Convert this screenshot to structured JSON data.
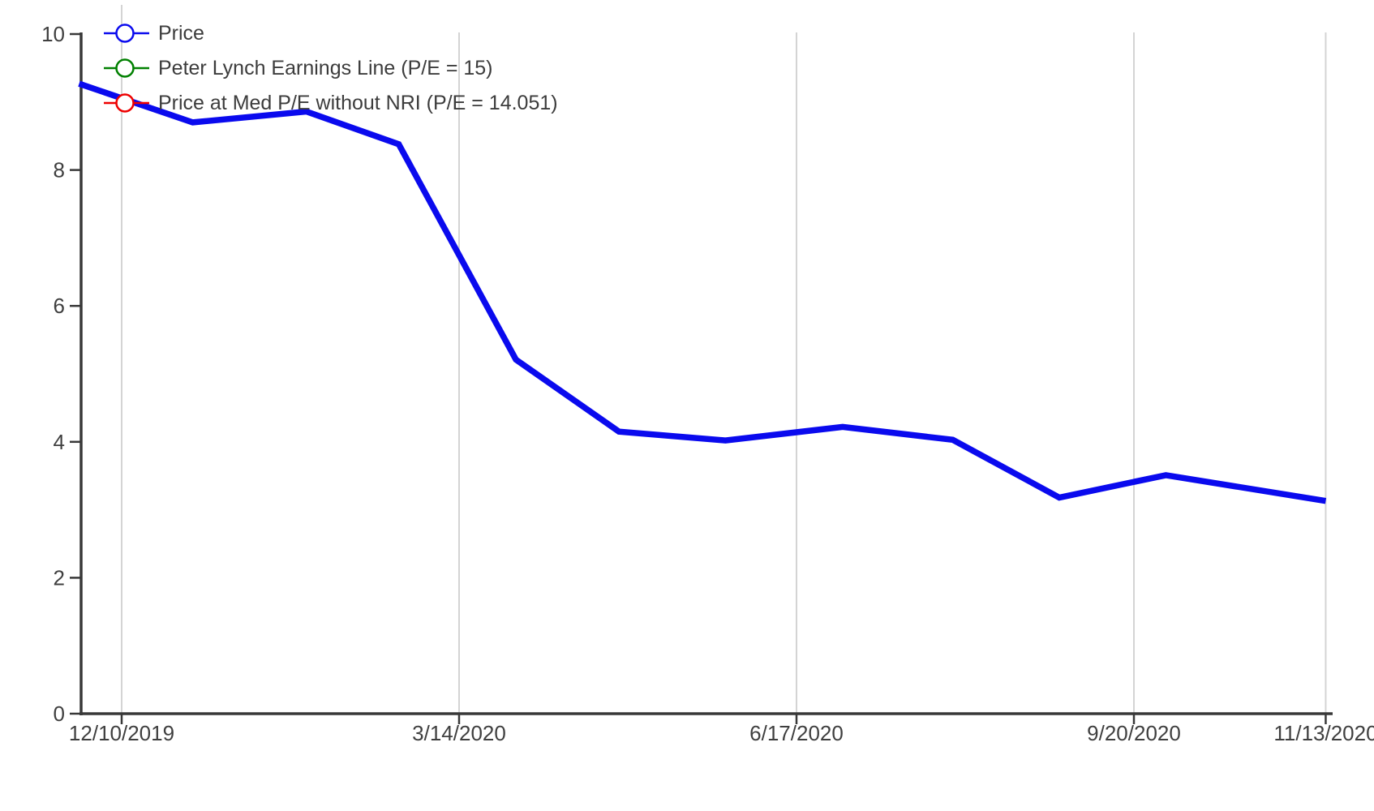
{
  "page": {
    "background": "#ffffff"
  },
  "legend": {
    "items": [
      {
        "id": "price",
        "label": "Price",
        "color": "#0a0aee"
      },
      {
        "id": "peter-lynch-earnings-line",
        "label": "Peter Lynch Earnings Line (P/E = 15)",
        "color": "#008000"
      },
      {
        "id": "price-at-med-pe",
        "label": "Price at Med P/E without NRI (P/E = 14.051)",
        "color": "#ee0000"
      }
    ]
  },
  "chart_data": {
    "type": "line",
    "title": "",
    "xlabel": "",
    "ylabel": "",
    "x_axis": {
      "type": "time",
      "tick_labels": [
        "12/10/2019",
        "3/14/2020",
        "6/17/2020",
        "9/20/2020",
        "11/13/2020"
      ]
    },
    "y_axis": {
      "tick_values": [
        0,
        2,
        4,
        6,
        8,
        10
      ],
      "ylim": [
        0,
        10
      ]
    },
    "grid": "vertical-only",
    "legend_position": "top-left",
    "series": [
      {
        "name": "Price",
        "color": "#0a0aee",
        "points": [
          [
            "11/28/2019",
            9.27
          ],
          [
            "12/30/2019",
            8.7
          ],
          [
            "1/31/2020",
            8.86
          ],
          [
            "2/26/2020",
            8.38
          ],
          [
            "3/30/2020",
            5.21
          ],
          [
            "4/28/2020",
            4.15
          ],
          [
            "5/28/2020",
            4.02
          ],
          [
            "6/30/2020",
            4.22
          ],
          [
            "7/31/2020",
            4.03
          ],
          [
            "8/30/2020",
            3.18
          ],
          [
            "9/29/2020",
            3.51
          ],
          [
            "11/13/2020",
            3.13
          ]
        ]
      },
      {
        "name": "Peter Lynch Earnings Line (P/E = 15)",
        "color": "#008000",
        "points": []
      },
      {
        "name": "Price at Med P/E without NRI (P/E = 14.051)",
        "color": "#ee0000",
        "points": []
      }
    ]
  }
}
